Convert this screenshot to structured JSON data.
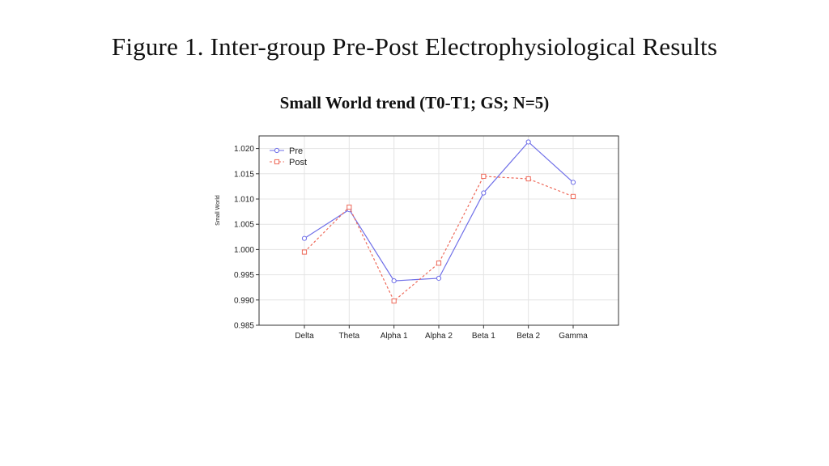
{
  "figure_title": "Figure 1. Inter-group Pre-Post Electrophysiological Results",
  "chart_data": {
    "type": "line",
    "title": "Small World trend (T0-T1; GS; N=5)",
    "xlabel": "",
    "ylabel": "Small World",
    "categories": [
      "Delta",
      "Theta",
      "Alpha 1",
      "Alpha 2",
      "Beta 1",
      "Beta 2",
      "Gamma"
    ],
    "series": [
      {
        "name": "Pre",
        "values": [
          1.0022,
          1.0079,
          0.9938,
          0.9943,
          1.0112,
          1.0213,
          1.0133
        ],
        "color": "#6f6fe8",
        "dash": "solid",
        "marker": "circle"
      },
      {
        "name": "Post",
        "values": [
          0.9995,
          1.0084,
          0.9898,
          0.9973,
          1.0145,
          1.014,
          1.0105
        ],
        "color": "#ee6a5a",
        "dash": "dashed",
        "marker": "square"
      }
    ],
    "ylim": [
      0.985,
      1.0225
    ],
    "yticks": [
      "0.985",
      "0.990",
      "0.995",
      "1.000",
      "1.005",
      "1.010",
      "1.015",
      "1.020"
    ],
    "grid": true,
    "legend": "top-left"
  }
}
